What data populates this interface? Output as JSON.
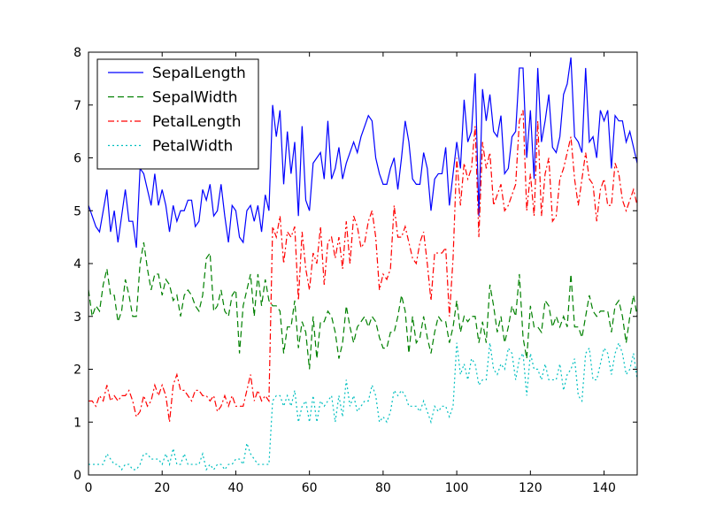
{
  "chart_data": {
    "type": "line",
    "xlim": [
      0,
      149
    ],
    "ylim": [
      0,
      8
    ],
    "x_ticks": [
      0,
      20,
      40,
      60,
      80,
      100,
      120,
      140
    ],
    "y_ticks": [
      0,
      1,
      2,
      3,
      4,
      5,
      6,
      7,
      8
    ],
    "grid": false,
    "legend_position": "top-left",
    "series": [
      {
        "name": "SepalLength",
        "color": "#0000ff",
        "linestyle": "solid",
        "values": [
          5.1,
          4.9,
          4.7,
          4.6,
          5.0,
          5.4,
          4.6,
          5.0,
          4.4,
          4.9,
          5.4,
          4.8,
          4.8,
          4.3,
          5.8,
          5.7,
          5.4,
          5.1,
          5.7,
          5.1,
          5.4,
          5.1,
          4.6,
          5.1,
          4.8,
          5.0,
          5.0,
          5.2,
          5.2,
          4.7,
          4.8,
          5.4,
          5.2,
          5.5,
          4.9,
          5.0,
          5.5,
          4.9,
          4.4,
          5.1,
          5.0,
          4.5,
          4.4,
          5.0,
          5.1,
          4.8,
          5.1,
          4.6,
          5.3,
          5.0,
          7.0,
          6.4,
          6.9,
          5.5,
          6.5,
          5.7,
          6.3,
          4.9,
          6.6,
          5.2,
          5.0,
          5.9,
          6.0,
          6.1,
          5.6,
          6.7,
          5.6,
          5.8,
          6.2,
          5.6,
          5.9,
          6.1,
          6.3,
          6.1,
          6.4,
          6.6,
          6.8,
          6.7,
          6.0,
          5.7,
          5.5,
          5.5,
          5.8,
          6.0,
          5.4,
          6.0,
          6.7,
          6.3,
          5.6,
          5.5,
          5.5,
          6.1,
          5.8,
          5.0,
          5.6,
          5.7,
          5.7,
          6.2,
          5.1,
          5.7,
          6.3,
          5.8,
          7.1,
          6.3,
          6.5,
          7.6,
          4.9,
          7.3,
          6.7,
          7.2,
          6.5,
          6.4,
          6.8,
          5.7,
          5.8,
          6.4,
          6.5,
          7.7,
          7.7,
          6.0,
          6.9,
          5.6,
          7.7,
          6.3,
          6.7,
          7.2,
          6.2,
          6.1,
          6.4,
          7.2,
          7.4,
          7.9,
          6.4,
          6.3,
          6.1,
          7.7,
          6.3,
          6.4,
          6.0,
          6.9,
          6.7,
          6.9,
          5.8,
          6.8,
          6.7,
          6.7,
          6.3,
          6.5,
          6.2,
          5.9
        ]
      },
      {
        "name": "SepalWidth",
        "color": "#008000",
        "linestyle": "dashed",
        "values": [
          3.5,
          3.0,
          3.2,
          3.1,
          3.6,
          3.9,
          3.4,
          3.4,
          2.9,
          3.1,
          3.7,
          3.4,
          3.0,
          3.0,
          4.0,
          4.4,
          3.9,
          3.5,
          3.8,
          3.8,
          3.4,
          3.7,
          3.6,
          3.3,
          3.4,
          3.0,
          3.4,
          3.5,
          3.4,
          3.2,
          3.1,
          3.4,
          4.1,
          4.2,
          3.1,
          3.2,
          3.5,
          3.1,
          3.0,
          3.4,
          3.5,
          2.3,
          3.2,
          3.5,
          3.8,
          3.0,
          3.8,
          3.2,
          3.7,
          3.3,
          3.2,
          3.2,
          3.1,
          2.3,
          2.8,
          2.8,
          3.3,
          2.4,
          2.9,
          2.7,
          2.0,
          3.0,
          2.2,
          2.9,
          2.9,
          3.1,
          3.0,
          2.7,
          2.2,
          2.5,
          3.2,
          2.8,
          2.5,
          2.8,
          2.9,
          3.0,
          2.8,
          3.0,
          2.9,
          2.6,
          2.4,
          2.4,
          2.7,
          2.7,
          3.0,
          3.4,
          3.1,
          2.3,
          3.0,
          2.5,
          2.6,
          3.0,
          2.6,
          2.3,
          2.7,
          3.0,
          2.9,
          2.9,
          2.5,
          2.8,
          3.3,
          2.7,
          3.0,
          2.9,
          3.0,
          3.0,
          2.5,
          2.9,
          2.5,
          3.6,
          3.2,
          2.7,
          3.0,
          2.5,
          2.8,
          3.2,
          3.0,
          3.8,
          2.6,
          2.2,
          3.2,
          2.8,
          2.8,
          2.7,
          3.3,
          3.2,
          2.8,
          3.0,
          2.8,
          3.0,
          2.8,
          3.8,
          2.8,
          2.8,
          2.6,
          3.0,
          3.4,
          3.1,
          3.0,
          3.1,
          3.1,
          3.1,
          2.7,
          3.2,
          3.3,
          3.0,
          2.5,
          3.0,
          3.4,
          3.0
        ]
      },
      {
        "name": "PetalLength",
        "color": "#ff0000",
        "linestyle": "dashdot",
        "values": [
          1.4,
          1.4,
          1.3,
          1.5,
          1.4,
          1.7,
          1.4,
          1.5,
          1.4,
          1.5,
          1.5,
          1.6,
          1.4,
          1.1,
          1.2,
          1.5,
          1.3,
          1.4,
          1.7,
          1.5,
          1.7,
          1.5,
          1.0,
          1.7,
          1.9,
          1.6,
          1.6,
          1.5,
          1.4,
          1.6,
          1.6,
          1.5,
          1.5,
          1.4,
          1.5,
          1.2,
          1.3,
          1.5,
          1.3,
          1.5,
          1.3,
          1.3,
          1.3,
          1.6,
          1.9,
          1.4,
          1.6,
          1.4,
          1.5,
          1.4,
          4.7,
          4.5,
          4.9,
          4.0,
          4.6,
          4.5,
          4.7,
          3.3,
          4.6,
          3.9,
          3.5,
          4.2,
          4.0,
          4.7,
          3.6,
          4.4,
          4.5,
          4.1,
          4.5,
          3.9,
          4.8,
          4.0,
          4.9,
          4.7,
          4.3,
          4.4,
          4.8,
          5.0,
          4.5,
          3.5,
          3.8,
          3.7,
          3.9,
          5.1,
          4.5,
          4.5,
          4.7,
          4.4,
          4.1,
          4.0,
          4.4,
          4.6,
          4.0,
          3.3,
          4.2,
          4.2,
          4.2,
          4.3,
          3.0,
          4.1,
          6.0,
          5.1,
          5.9,
          5.6,
          5.8,
          6.6,
          4.5,
          6.3,
          5.8,
          6.1,
          5.1,
          5.3,
          5.5,
          5.0,
          5.1,
          5.3,
          5.5,
          6.7,
          6.9,
          5.0,
          5.7,
          4.9,
          6.7,
          4.9,
          5.7,
          6.0,
          4.8,
          4.9,
          5.6,
          5.8,
          6.1,
          6.4,
          5.6,
          5.1,
          5.6,
          6.1,
          5.6,
          5.5,
          4.8,
          5.4,
          5.6,
          5.1,
          5.1,
          5.9,
          5.7,
          5.2,
          5.0,
          5.2,
          5.4,
          5.1
        ]
      },
      {
        "name": "PetalWidth",
        "color": "#00bfbf",
        "linestyle": "dotted",
        "values": [
          0.2,
          0.2,
          0.2,
          0.2,
          0.2,
          0.4,
          0.3,
          0.2,
          0.2,
          0.1,
          0.2,
          0.2,
          0.1,
          0.1,
          0.2,
          0.4,
          0.4,
          0.3,
          0.3,
          0.3,
          0.2,
          0.4,
          0.2,
          0.5,
          0.2,
          0.2,
          0.4,
          0.2,
          0.2,
          0.2,
          0.2,
          0.4,
          0.1,
          0.2,
          0.1,
          0.2,
          0.2,
          0.1,
          0.2,
          0.2,
          0.3,
          0.3,
          0.2,
          0.6,
          0.4,
          0.3,
          0.2,
          0.2,
          0.2,
          0.2,
          1.4,
          1.5,
          1.5,
          1.3,
          1.5,
          1.3,
          1.6,
          1.0,
          1.3,
          1.4,
          1.0,
          1.5,
          1.0,
          1.4,
          1.3,
          1.4,
          1.5,
          1.0,
          1.5,
          1.1,
          1.8,
          1.3,
          1.5,
          1.2,
          1.3,
          1.4,
          1.4,
          1.7,
          1.5,
          1.0,
          1.1,
          1.0,
          1.2,
          1.6,
          1.5,
          1.6,
          1.5,
          1.3,
          1.3,
          1.3,
          1.2,
          1.4,
          1.2,
          1.0,
          1.3,
          1.2,
          1.3,
          1.3,
          1.1,
          1.3,
          2.5,
          1.9,
          2.1,
          1.8,
          2.2,
          2.1,
          1.7,
          1.8,
          1.8,
          2.5,
          2.0,
          1.9,
          2.1,
          2.0,
          2.4,
          2.3,
          1.8,
          2.2,
          2.3,
          1.5,
          2.3,
          2.0,
          2.0,
          1.8,
          2.1,
          1.8,
          1.8,
          1.8,
          2.1,
          1.6,
          1.9,
          2.0,
          2.2,
          1.5,
          1.4,
          2.3,
          2.4,
          1.8,
          1.8,
          2.1,
          2.4,
          2.3,
          1.9,
          2.3,
          2.5,
          2.3,
          1.9,
          2.0,
          2.3,
          1.8
        ]
      }
    ]
  }
}
